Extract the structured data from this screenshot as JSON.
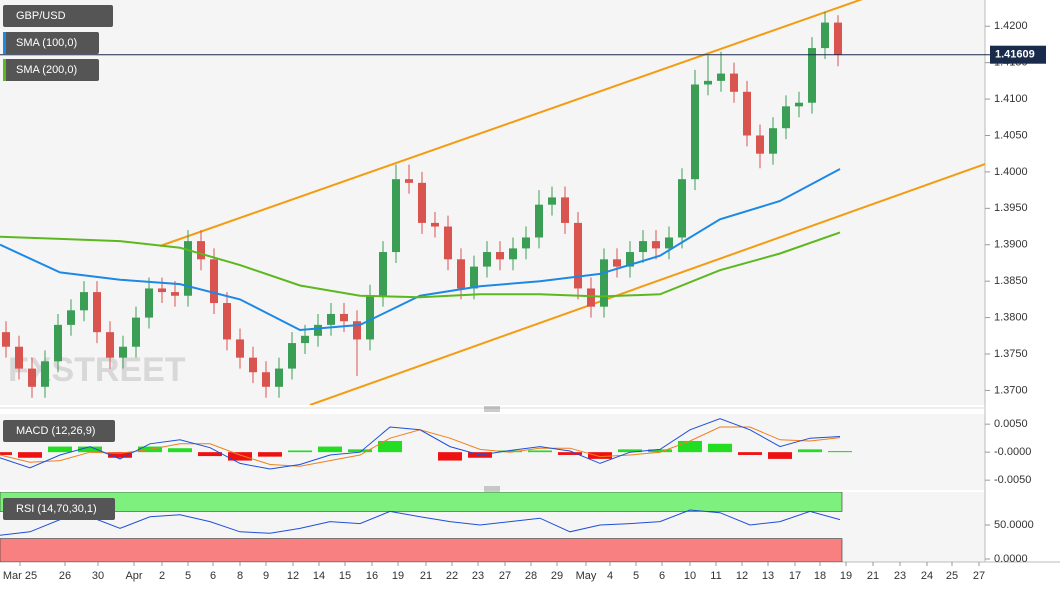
{
  "chart_data": [
    {
      "type": "candlestick",
      "title": "GBP/USD",
      "watermark": "FXSTREET",
      "open": [
        1.378,
        1.376,
        1.373,
        1.3705,
        1.374,
        1.379,
        1.381,
        1.3835,
        1.378,
        1.3745,
        1.376,
        1.38,
        1.384,
        1.3835,
        1.383,
        1.3905,
        1.388,
        1.382,
        1.377,
        1.3745,
        1.3725,
        1.3705,
        1.373,
        1.3765,
        1.3775,
        1.379,
        1.3805,
        1.3795,
        1.377,
        1.383,
        1.389,
        1.399,
        1.3985,
        1.393,
        1.3925,
        1.388,
        1.384,
        1.387,
        1.389,
        1.388,
        1.3895,
        1.391,
        1.3955,
        1.3965,
        1.393,
        1.384,
        1.3815,
        1.388,
        1.387,
        1.389,
        1.3905,
        1.3895,
        1.391,
        1.399,
        1.412,
        1.4125,
        1.4135,
        1.411,
        1.405,
        1.4025,
        1.406,
        1.409,
        1.4095,
        1.417,
        1.4205
      ],
      "high": [
        1.3795,
        1.3775,
        1.3745,
        1.3755,
        1.3805,
        1.3825,
        1.385,
        1.385,
        1.3795,
        1.3775,
        1.3815,
        1.3855,
        1.3855,
        1.385,
        1.392,
        1.392,
        1.3895,
        1.3835,
        1.3785,
        1.376,
        1.374,
        1.3745,
        1.378,
        1.379,
        1.3805,
        1.382,
        1.382,
        1.381,
        1.3845,
        1.3905,
        1.401,
        1.401,
        1.4,
        1.3945,
        1.394,
        1.3895,
        1.3885,
        1.3905,
        1.3905,
        1.391,
        1.3925,
        1.3975,
        1.398,
        1.398,
        1.3945,
        1.3855,
        1.3895,
        1.3895,
        1.3905,
        1.392,
        1.392,
        1.3925,
        1.4005,
        1.414,
        1.416,
        1.4165,
        1.415,
        1.4125,
        1.4065,
        1.4075,
        1.4105,
        1.411,
        1.4185,
        1.422,
        1.4215
      ],
      "low": [
        1.3745,
        1.3715,
        1.369,
        1.369,
        1.3725,
        1.3775,
        1.3795,
        1.3765,
        1.373,
        1.373,
        1.3745,
        1.3785,
        1.382,
        1.3815,
        1.3815,
        1.3865,
        1.3805,
        1.3755,
        1.373,
        1.371,
        1.369,
        1.369,
        1.3715,
        1.375,
        1.376,
        1.3775,
        1.378,
        1.372,
        1.3755,
        1.3815,
        1.3875,
        1.397,
        1.3915,
        1.391,
        1.3865,
        1.3825,
        1.3825,
        1.3855,
        1.3865,
        1.3865,
        1.388,
        1.3895,
        1.394,
        1.3915,
        1.3825,
        1.38,
        1.38,
        1.3855,
        1.3855,
        1.3875,
        1.388,
        1.388,
        1.3895,
        1.3975,
        1.4105,
        1.411,
        1.4095,
        1.4035,
        1.4005,
        1.401,
        1.4045,
        1.4075,
        1.408,
        1.4155,
        1.4145
      ],
      "close": [
        1.376,
        1.373,
        1.3705,
        1.374,
        1.379,
        1.381,
        1.3835,
        1.378,
        1.3745,
        1.376,
        1.38,
        1.384,
        1.3835,
        1.383,
        1.3905,
        1.388,
        1.382,
        1.377,
        1.3745,
        1.3725,
        1.3705,
        1.373,
        1.3765,
        1.3775,
        1.379,
        1.3805,
        1.3795,
        1.377,
        1.383,
        1.389,
        1.399,
        1.3985,
        1.393,
        1.3925,
        1.388,
        1.384,
        1.387,
        1.389,
        1.388,
        1.3895,
        1.391,
        1.3955,
        1.3965,
        1.393,
        1.384,
        1.3815,
        1.388,
        1.387,
        1.389,
        1.3905,
        1.3895,
        1.391,
        1.399,
        1.412,
        1.4125,
        1.4135,
        1.411,
        1.405,
        1.4025,
        1.406,
        1.409,
        1.4095,
        1.417,
        1.4205,
        1.4161
      ],
      "up_color": "#3a9e55",
      "down_color": "#d9534f",
      "series": [
        {
          "name": "SMA (100,0)",
          "color": "#1e88e5",
          "values": [
            1.39,
            1.3862,
            1.3852,
            1.3846,
            1.3825,
            1.3783,
            1.379,
            1.383,
            1.3843,
            1.385,
            1.386,
            1.3885,
            1.3935,
            1.396,
            1.4004
          ]
        },
        {
          "name": "SMA (200,0)",
          "color": "#5cb81e",
          "values": [
            1.3911,
            1.3908,
            1.3905,
            1.3896,
            1.3872,
            1.3844,
            1.383,
            1.3828,
            1.3832,
            1.3832,
            1.3829,
            1.3832,
            1.3865,
            1.3888,
            1.3917
          ]
        }
      ],
      "last_price": 1.41609,
      "ylim": [
        1.368,
        1.4236
      ],
      "yticks": [
        {
          "value": 1.42,
          "label": "1.4200"
        },
        {
          "value": 1.415,
          "label": "1.4150"
        },
        {
          "value": 1.41,
          "label": "1.4100"
        },
        {
          "value": 1.405,
          "label": "1.4050"
        },
        {
          "value": 1.4,
          "label": "1.4000"
        },
        {
          "value": 1.395,
          "label": "1.3950"
        },
        {
          "value": 1.39,
          "label": "1.3900"
        },
        {
          "value": 1.385,
          "label": "1.3850"
        },
        {
          "value": 1.38,
          "label": "1.3800"
        },
        {
          "value": 1.375,
          "label": "1.3750"
        },
        {
          "value": 1.37,
          "label": "1.3700"
        }
      ]
    },
    {
      "type": "macd",
      "title": "MACD (12,26,9)",
      "macd": [
        -0.001,
        -0.0028,
        -0.0005,
        0.001,
        -0.0012,
        0.0015,
        0.0022,
        0.0008,
        -0.002,
        -0.003,
        -0.0022,
        -0.0005,
        0.0,
        0.0045,
        0.004,
        0.001,
        -0.0005,
        0.0003,
        0.001,
        0.0002,
        -0.002,
        0.0,
        0.0005,
        0.004,
        0.006,
        0.004,
        0.001,
        0.0025,
        0.0028
      ],
      "signal": [
        -0.0005,
        -0.0018,
        -0.0015,
        0.0,
        -0.0002,
        0.0005,
        0.0015,
        0.0015,
        -0.0005,
        -0.0022,
        -0.0025,
        -0.0015,
        -0.0005,
        0.0025,
        0.004,
        0.0025,
        0.0005,
        0.0,
        0.0007,
        0.0007,
        -0.0008,
        -0.0005,
        0.0,
        0.002,
        0.0045,
        0.0045,
        0.0022,
        0.002,
        0.0026
      ],
      "histogram": [
        -0.0005,
        -0.001,
        0.001,
        0.001,
        -0.001,
        0.001,
        0.0007,
        -0.0007,
        -0.0015,
        -0.0008,
        0.0003,
        0.001,
        0.0005,
        0.002,
        0.0,
        -0.0015,
        -0.001,
        0.0003,
        0.0003,
        -0.0005,
        -0.0012,
        0.0005,
        0.0005,
        0.002,
        0.0015,
        -0.0005,
        -0.0012,
        0.0005,
        0.0002
      ],
      "macd_color": "#1e4fd8",
      "signal_color": "#f07f1e",
      "up_color": "#22dd22",
      "down_color": "#ee1111",
      "ylim": [
        -0.0064,
        0.0061
      ],
      "yticks": [
        {
          "value": 0.005,
          "label": "0.0050"
        },
        {
          "value": 0,
          "label": "-0.0000"
        },
        {
          "value": -0.005,
          "label": "-0.0050"
        }
      ]
    },
    {
      "type": "rsi",
      "title": "RSI (14,70,30,1)",
      "values": [
        35,
        40,
        58,
        62,
        45,
        62,
        65,
        55,
        40,
        38,
        45,
        55,
        52,
        70,
        62,
        55,
        50,
        55,
        60,
        40,
        50,
        52,
        55,
        72,
        68,
        50,
        55,
        70,
        58
      ],
      "color": "#1e4fd8",
      "upper": 70,
      "lower": 30,
      "upper_color": "#7ef07e",
      "lower_color": "#f88080",
      "ylim": [
        -4.4,
        98.5
      ],
      "yticks": [
        {
          "value": 50,
          "label": "50.0000"
        },
        {
          "value": 0,
          "label": "0.0000"
        }
      ],
      "x_labels": [
        "Mar 25",
        "26",
        "30",
        "Apr",
        "2",
        "5",
        "6",
        "8",
        "9",
        "12",
        "14",
        "15",
        "16",
        "19",
        "21",
        "22",
        "23",
        "27",
        "28",
        "29",
        "May",
        "4",
        "5",
        "6",
        "10",
        "11",
        "12",
        "13",
        "17",
        "18",
        "19",
        "21",
        "23",
        "24",
        "25",
        "27"
      ]
    }
  ]
}
